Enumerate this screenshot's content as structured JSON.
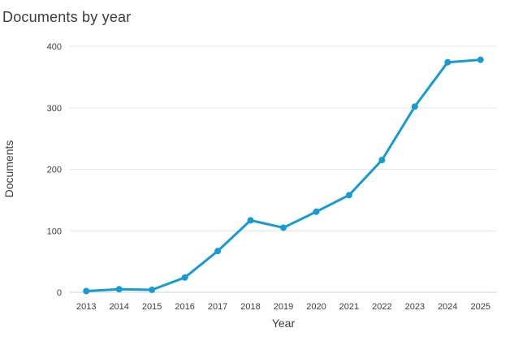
{
  "chart_data": {
    "type": "line",
    "title": "Documents by year",
    "xlabel": "Year",
    "ylabel": "Documents",
    "categories": [
      "2013",
      "2014",
      "2015",
      "2016",
      "2017",
      "2018",
      "2019",
      "2020",
      "2021",
      "2022",
      "2023",
      "2024",
      "2025"
    ],
    "series": [
      {
        "name": "Documents",
        "values": [
          2,
          5,
          4,
          24,
          67,
          117,
          105,
          131,
          158,
          215,
          302,
          374,
          378
        ]
      }
    ],
    "ylim": [
      0,
      400
    ],
    "yticks": [
      0,
      100,
      200,
      300,
      400
    ],
    "grid": "horizontal",
    "legend": "none",
    "colors": {
      "line": "#189bd2",
      "marker": "#189bd2",
      "grid_line": "#e6e6e6",
      "zero_axis_line": "#cfcfcf",
      "text": "#3c3c3c"
    }
  }
}
